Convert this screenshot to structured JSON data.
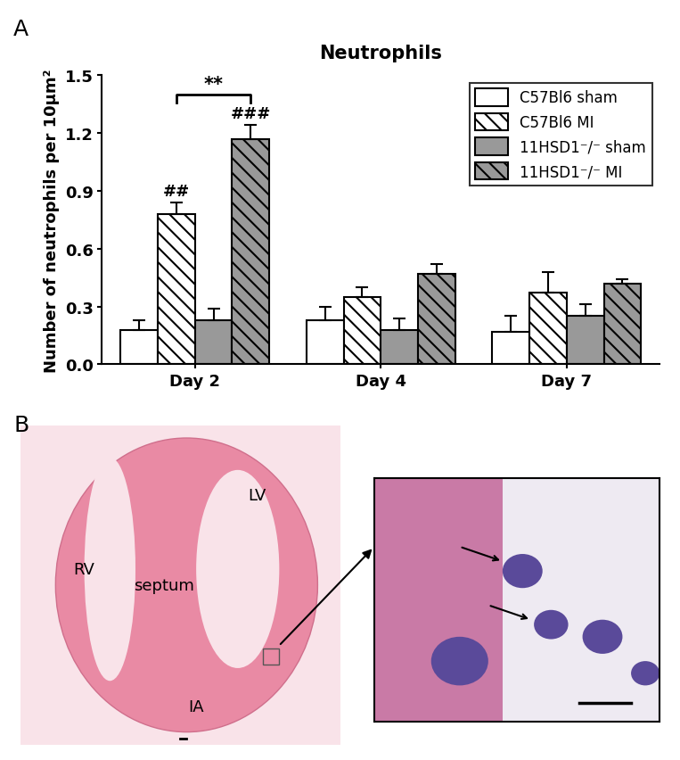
{
  "chart_data": {
    "type": "bar",
    "title": "Neutrophils",
    "y_label": "Number of neutrophils per 10μm²",
    "categories": [
      "Day 2",
      "Day 4",
      "Day 7"
    ],
    "series": [
      {
        "name": "C57Bl6 sham",
        "color": "#ffffff",
        "values": [
          0.18,
          0.23,
          0.17
        ],
        "errors": [
          0.05,
          0.07,
          0.08
        ]
      },
      {
        "name": "C57Bl6 MI",
        "color": "#ffffff",
        "values": [
          0.78,
          0.35,
          0.37
        ],
        "errors": [
          0.06,
          0.05,
          0.11
        ]
      },
      {
        "name": "11HSD1⁻/⁻ sham",
        "color": "#999999",
        "values": [
          0.23,
          0.18,
          0.25
        ],
        "errors": [
          0.06,
          0.06,
          0.06
        ]
      },
      {
        "name": "11HSD1⁻/⁻ MI",
        "color": "#999999",
        "values": [
          1.17,
          0.47,
          0.42
        ],
        "errors": [
          0.07,
          0.05,
          0.02
        ]
      }
    ],
    "ylim": [
      0.0,
      1.5
    ],
    "yticks": [
      0.0,
      0.3,
      0.6,
      0.9,
      1.2,
      1.5
    ],
    "legend": "upper right",
    "annotations": [
      {
        "text": "##",
        "category": "Day 2",
        "series": [
          "C57Bl6 MI"
        ]
      },
      {
        "text": "###",
        "category": "Day 2",
        "series": [
          "11HSD1⁻/⁻ MI"
        ]
      },
      {
        "text": "**",
        "category": "Day 2",
        "series": [
          "C57Bl6 MI",
          "11HSD1⁻/⁻ MI"
        ]
      }
    ]
  },
  "figure_labels": [
    "A",
    "B"
  ],
  "image": {
    "labels": [
      "RV",
      "septum",
      "LV",
      "IA"
    ]
  }
}
